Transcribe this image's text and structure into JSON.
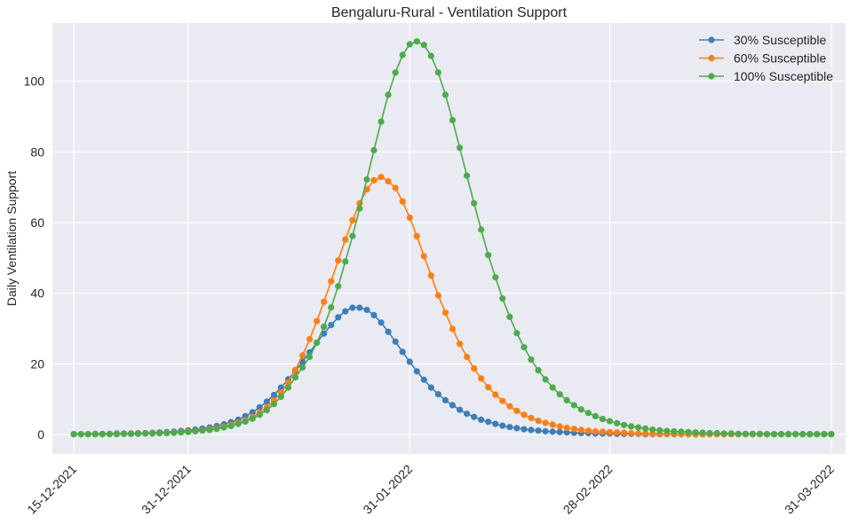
{
  "chart_data": {
    "type": "line",
    "title": "Bengaluru-Rural - Ventilation Support",
    "xlabel": "",
    "ylabel": "Daily Ventilation Support",
    "x_start": "2021-12-15",
    "x_step_days": 1,
    "xlim": [
      "2021-12-12",
      "2022-04-02"
    ],
    "ylim": [
      -5.5,
      116.5
    ],
    "x_ticks": [
      "15-12-2021",
      "31-12-2021",
      "31-01-2022",
      "28-02-2022",
      "31-03-2022"
    ],
    "y_ticks": [
      0,
      20,
      40,
      60,
      80,
      100
    ],
    "grid": true,
    "legend_position": "top-right",
    "marker": "circle",
    "series": [
      {
        "name": "30% Susceptible",
        "color": "#3a7fbd",
        "values": [
          0.1,
          0.1,
          0.1,
          0.2,
          0.2,
          0.2,
          0.3,
          0.3,
          0.3,
          0.4,
          0.4,
          0.5,
          0.6,
          0.7,
          0.8,
          1.0,
          1.2,
          1.4,
          1.7,
          2.0,
          2.4,
          2.9,
          3.5,
          4.2,
          5.2,
          6.3,
          7.7,
          9.3,
          11.2,
          13.3,
          15.6,
          18.0,
          20.6,
          23.3,
          26.0,
          28.6,
          31.0,
          33.2,
          34.9,
          35.9,
          35.9,
          35.3,
          33.8,
          31.7,
          29.1,
          26.3,
          23.4,
          20.6,
          17.9,
          15.5,
          13.3,
          11.4,
          9.7,
          8.3,
          7.0,
          5.9,
          5.0,
          4.2,
          3.6,
          3.0,
          2.5,
          2.1,
          1.8,
          1.5,
          1.3,
          1.1,
          0.9,
          0.8,
          0.7,
          0.6,
          0.5,
          0.4,
          0.4,
          0.3,
          0.3,
          0.3,
          0.2,
          0.2,
          0.2,
          0.2,
          0.1,
          0.1,
          0.1,
          0.1,
          0.1,
          0.1,
          0.1,
          0.1,
          0.1,
          0.1,
          0.1,
          0.1,
          0.1,
          0.1,
          0.1,
          0.1,
          0.1,
          0.1,
          0.1,
          0.1,
          0.1,
          0.1,
          0.1,
          0.1,
          0.1,
          0.1,
          0.1
        ]
      },
      {
        "name": "60% Susceptible",
        "color": "#ff7f0e",
        "values": [
          0.1,
          0.1,
          0.1,
          0.1,
          0.1,
          0.2,
          0.2,
          0.2,
          0.2,
          0.3,
          0.3,
          0.4,
          0.4,
          0.5,
          0.6,
          0.7,
          0.9,
          1.0,
          1.2,
          1.5,
          1.8,
          2.2,
          2.7,
          3.3,
          4.0,
          5.0,
          6.2,
          7.7,
          9.6,
          11.9,
          14.7,
          18.3,
          22.4,
          27.0,
          32.1,
          37.6,
          43.4,
          49.3,
          55.2,
          60.7,
          65.5,
          69.4,
          72.0,
          72.9,
          71.7,
          69.8,
          66.0,
          61.4,
          56.2,
          50.5,
          45.0,
          39.4,
          34.5,
          29.9,
          25.7,
          22.0,
          18.7,
          15.9,
          13.4,
          11.3,
          9.5,
          8.0,
          6.7,
          5.6,
          4.7,
          3.9,
          3.3,
          2.8,
          2.3,
          1.9,
          1.6,
          1.3,
          1.1,
          0.9,
          0.8,
          0.7,
          0.6,
          0.5,
          0.4,
          0.3,
          0.3,
          0.2,
          0.2,
          0.2,
          0.2,
          0.1,
          0.1,
          0.1,
          0.1,
          0.1,
          0.1,
          0.1,
          0.1,
          0.1,
          0.1,
          0.1,
          0.1,
          0.1,
          0.1,
          0.1,
          0.1,
          0.1,
          0.1,
          0.1,
          0.1,
          0.1,
          0.1
        ]
      },
      {
        "name": "100% Susceptible",
        "color": "#4aad4a",
        "values": [
          0.1,
          0.1,
          0.1,
          0.1,
          0.1,
          0.1,
          0.1,
          0.2,
          0.2,
          0.2,
          0.3,
          0.3,
          0.4,
          0.4,
          0.5,
          0.6,
          0.7,
          0.9,
          1.1,
          1.3,
          1.6,
          2.0,
          2.4,
          3.0,
          3.7,
          4.5,
          5.6,
          6.9,
          8.6,
          10.7,
          13.3,
          16.2,
          19.0,
          22.0,
          26.0,
          30.5,
          36.0,
          42.0,
          49.0,
          56.2,
          64.0,
          72.2,
          80.5,
          88.6,
          96.2,
          102.5,
          107.5,
          110.5,
          111.3,
          110.3,
          107.2,
          102.5,
          96.2,
          89.0,
          81.2,
          73.3,
          65.5,
          58.0,
          50.8,
          44.5,
          38.5,
          33.3,
          28.7,
          24.7,
          21.2,
          18.2,
          15.6,
          13.3,
          11.4,
          9.7,
          8.3,
          7.1,
          6.1,
          5.2,
          4.4,
          3.8,
          3.2,
          2.7,
          2.3,
          2.0,
          1.7,
          1.4,
          1.2,
          1.0,
          0.9,
          0.8,
          0.7,
          0.6,
          0.5,
          0.4,
          0.4,
          0.3,
          0.3,
          0.2,
          0.2,
          0.2,
          0.2,
          0.1,
          0.1,
          0.1,
          0.1,
          0.1,
          0.1,
          0.1,
          0.1,
          0.1,
          0.1
        ]
      }
    ]
  }
}
